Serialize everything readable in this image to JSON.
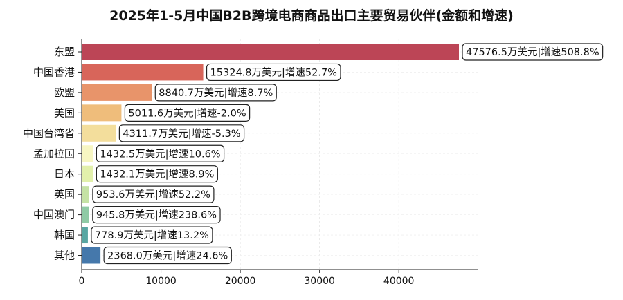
{
  "chart_data": {
    "type": "bar",
    "orientation": "horizontal",
    "title": "2025年1-5月中国B2B跨境电商商品出口主要贸易伙伴(金额和增速)",
    "categories": [
      "东盟",
      "中国香港",
      "欧盟",
      "美国",
      "中国台湾省",
      "孟加拉国",
      "日本",
      "英国",
      "中国澳门",
      "韩国",
      "其他"
    ],
    "values": [
      47576.5,
      15324.8,
      8840.7,
      5011.6,
      4311.7,
      1432.5,
      1432.1,
      953.6,
      945.8,
      778.9,
      2368.0
    ],
    "data_labels": [
      "47576.5万美元|增速508.8%",
      "15324.8万美元|增速52.7%",
      "8840.7万美元|增速8.7%",
      "5011.6万美元|增速-2.0%",
      "4311.7万美元|增速-5.3%",
      "1432.5万美元|增速10.6%",
      "1432.1万美元|增速8.9%",
      "953.6万美元|增速52.2%",
      "945.8万美元|增速238.6%",
      "778.9万美元|增速13.2%",
      "2368.0万美元|增速24.6%"
    ],
    "colors": [
      "#bc4556",
      "#d8655a",
      "#e8946a",
      "#efbd7b",
      "#f3de9c",
      "#f7f6c2",
      "#e2f0ab",
      "#c5e2a5",
      "#8fcaa5",
      "#59a6a2",
      "#4578ab"
    ],
    "xticks": [
      0,
      10000,
      20000,
      30000,
      40000
    ],
    "xtick_labels": [
      "0",
      "10000",
      "20000",
      "30000",
      "40000"
    ],
    "xlim": [
      0,
      50000
    ],
    "xlabel": "",
    "ylabel": "",
    "grid": "x-dashed"
  }
}
